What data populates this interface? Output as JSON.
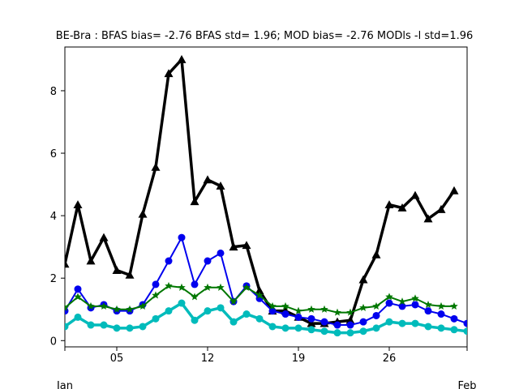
{
  "chart_data": {
    "type": "line",
    "title": "BE-Bra   : BFAS bias= -2.76 BFAS std= 1.96; MOD bias= -2.76 MODls -l std=1.96",
    "xlabel": "",
    "ylabel": "",
    "x": [
      1,
      2,
      3,
      4,
      5,
      6,
      7,
      8,
      9,
      10,
      11,
      12,
      13,
      14,
      15,
      16,
      17,
      18,
      19,
      20,
      21,
      22,
      23,
      24,
      25,
      26,
      27,
      28,
      29,
      30,
      31,
      32
    ],
    "xlim": [
      1,
      32
    ],
    "ylim": [
      -0.2,
      9.4
    ],
    "x_ticks": [
      {
        "x": 1,
        "label": "",
        "sublabel": "Jan"
      },
      {
        "x": 5,
        "label": "05",
        "sublabel": ""
      },
      {
        "x": 12,
        "label": "12",
        "sublabel": ""
      },
      {
        "x": 19,
        "label": "19",
        "sublabel": ""
      },
      {
        "x": 26,
        "label": "26",
        "sublabel": ""
      },
      {
        "x": 32,
        "label": "",
        "sublabel": "Feb"
      }
    ],
    "y_ticks": [
      0,
      2,
      4,
      6,
      8
    ],
    "grid": false,
    "series": [
      {
        "color": "#000000",
        "marker": "triangle",
        "line_width": 3.5,
        "values": [
          2.45,
          4.35,
          2.55,
          3.3,
          2.25,
          2.1,
          4.05,
          5.55,
          8.55,
          9.0,
          4.45,
          5.15,
          4.95,
          3.0,
          3.05,
          1.6,
          0.95,
          0.95,
          0.75,
          0.55,
          0.55,
          0.6,
          0.65,
          1.95,
          2.75,
          4.35,
          4.25,
          4.65,
          3.9,
          4.2,
          4.8,
          null
        ]
      },
      {
        "color": "#0000ee",
        "marker": "circle",
        "line_width": 2,
        "values": [
          0.95,
          1.65,
          1.05,
          1.15,
          0.95,
          0.95,
          1.15,
          1.8,
          2.55,
          3.3,
          1.8,
          2.55,
          2.8,
          1.25,
          1.75,
          1.35,
          0.95,
          0.85,
          0.75,
          0.7,
          0.6,
          0.5,
          0.5,
          0.6,
          0.8,
          1.2,
          1.1,
          1.15,
          0.95,
          0.85,
          0.7,
          0.55
        ]
      },
      {
        "color": "#007700",
        "marker": "star",
        "line_width": 2,
        "values": [
          1.05,
          1.4,
          1.1,
          1.1,
          1.0,
          1.0,
          1.1,
          1.45,
          1.75,
          1.7,
          1.4,
          1.7,
          1.7,
          1.25,
          1.7,
          1.45,
          1.1,
          1.1,
          0.95,
          1.0,
          1.0,
          0.9,
          0.9,
          1.05,
          1.1,
          1.4,
          1.25,
          1.35,
          1.15,
          1.1,
          1.1,
          null
        ]
      },
      {
        "color": "#00bbbb",
        "marker": "circle",
        "line_width": 3.5,
        "values": [
          0.45,
          0.75,
          0.5,
          0.5,
          0.4,
          0.4,
          0.45,
          0.7,
          0.95,
          1.2,
          0.65,
          0.95,
          1.05,
          0.6,
          0.85,
          0.7,
          0.45,
          0.4,
          0.4,
          0.35,
          0.3,
          0.25,
          0.25,
          0.3,
          0.4,
          0.6,
          0.55,
          0.55,
          0.45,
          0.4,
          0.35,
          0.3
        ]
      }
    ]
  }
}
